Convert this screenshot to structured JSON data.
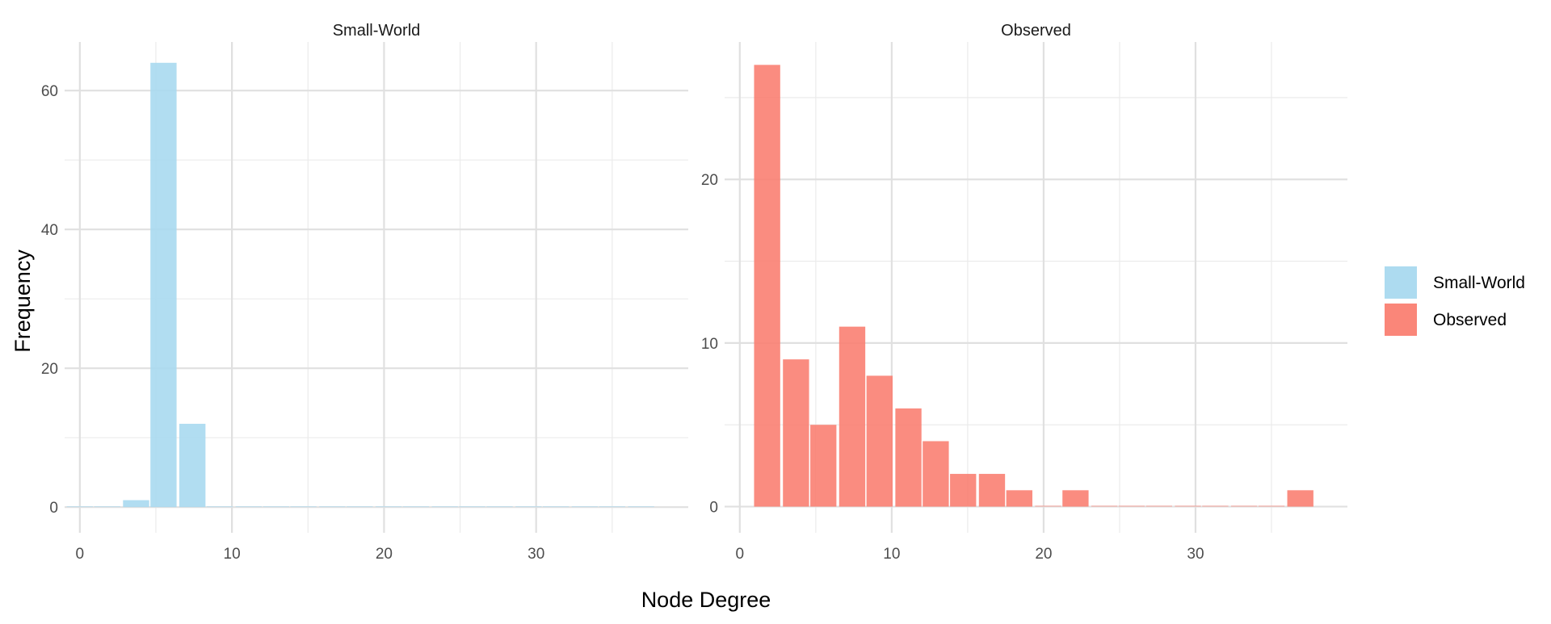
{
  "chart_data": {
    "type": "bar",
    "xlabel": "Node Degree",
    "ylabel": "Frequency",
    "xlim": [
      -1,
      40
    ],
    "xticks": [
      0,
      10,
      20,
      30
    ],
    "bin_width": 1.8,
    "grid": true,
    "legend_position": "right",
    "legend": [
      {
        "name": "Small-World",
        "color": "#a9d9ef"
      },
      {
        "name": "Observed",
        "color": "#fa8072"
      }
    ],
    "panels": [
      {
        "title": "Small-World",
        "color": "#a9d9ef",
        "ylim": [
          -3.7,
          67
        ],
        "yticks": [
          0,
          20,
          40,
          60
        ],
        "ygrid_minor": [
          10,
          30,
          50
        ],
        "bins": [
          {
            "x": 0.0,
            "count": 0
          },
          {
            "x": 1.8,
            "count": 0
          },
          {
            "x": 3.7,
            "count": 1
          },
          {
            "x": 5.5,
            "count": 64
          },
          {
            "x": 7.4,
            "count": 12
          },
          {
            "x": 9.2,
            "count": 0
          },
          {
            "x": 11.1,
            "count": 0
          },
          {
            "x": 12.9,
            "count": 0
          },
          {
            "x": 14.7,
            "count": 0
          },
          {
            "x": 16.6,
            "count": 0
          },
          {
            "x": 18.4,
            "count": 0
          },
          {
            "x": 20.3,
            "count": 0
          },
          {
            "x": 22.1,
            "count": 0
          },
          {
            "x": 24.0,
            "count": 0
          },
          {
            "x": 25.8,
            "count": 0
          },
          {
            "x": 27.6,
            "count": 0
          },
          {
            "x": 29.5,
            "count": 0
          },
          {
            "x": 31.3,
            "count": 0
          },
          {
            "x": 33.2,
            "count": 0
          },
          {
            "x": 35.0,
            "count": 0
          },
          {
            "x": 36.9,
            "count": 0
          }
        ]
      },
      {
        "title": "Observed",
        "color": "#fa8072",
        "ylim": [
          -1.6,
          28.4
        ],
        "yticks": [
          0,
          10,
          20
        ],
        "ygrid_minor": [
          5,
          15,
          25
        ],
        "bins": [
          {
            "x": 1.8,
            "count": 27
          },
          {
            "x": 3.7,
            "count": 9
          },
          {
            "x": 5.5,
            "count": 5
          },
          {
            "x": 7.4,
            "count": 11
          },
          {
            "x": 9.2,
            "count": 8
          },
          {
            "x": 11.1,
            "count": 6
          },
          {
            "x": 12.9,
            "count": 4
          },
          {
            "x": 14.7,
            "count": 2
          },
          {
            "x": 16.6,
            "count": 2
          },
          {
            "x": 18.4,
            "count": 1
          },
          {
            "x": 20.3,
            "count": 0
          },
          {
            "x": 22.1,
            "count": 1
          },
          {
            "x": 24.0,
            "count": 0
          },
          {
            "x": 25.8,
            "count": 0
          },
          {
            "x": 27.6,
            "count": 0
          },
          {
            "x": 29.5,
            "count": 0
          },
          {
            "x": 31.3,
            "count": 0
          },
          {
            "x": 33.2,
            "count": 0
          },
          {
            "x": 35.0,
            "count": 0
          },
          {
            "x": 36.9,
            "count": 1
          }
        ]
      }
    ]
  }
}
